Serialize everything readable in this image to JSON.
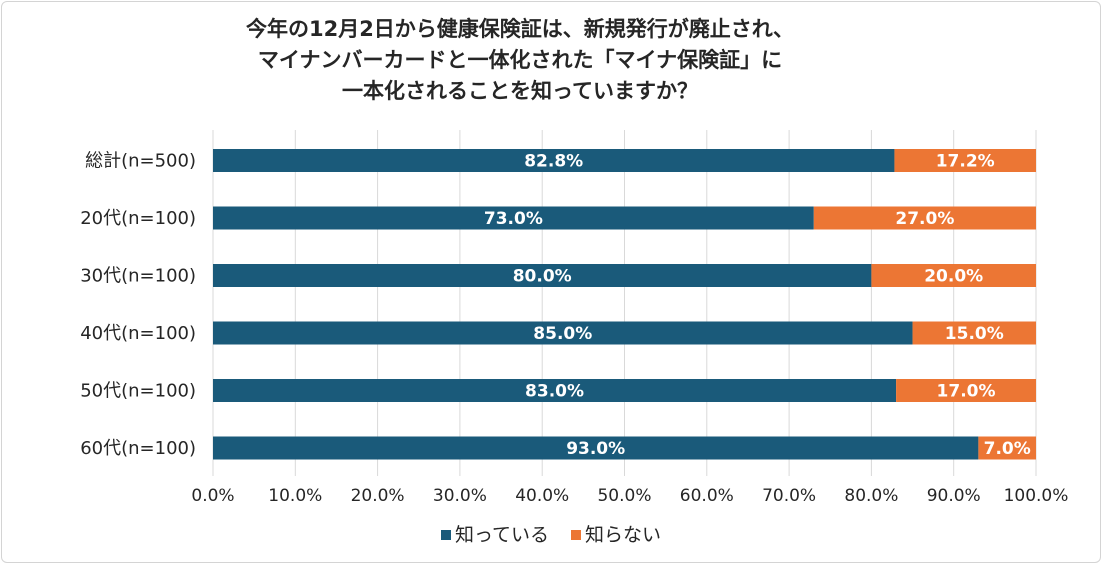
{
  "chart_data": {
    "type": "bar",
    "orientation": "horizontal",
    "stacked": true,
    "title_lines": [
      "今年の12月2日から健康保険証は、新規発行が廃止され、",
      "マイナンバーカードと一体化された「マイナ保険証」に",
      "一本化されることを知っていますか？"
    ],
    "categories": [
      "総計(n=500)",
      "20代(n=100)",
      "30代(n=100)",
      "40代(n=100)",
      "50代(n=100)",
      "60代(n=100)"
    ],
    "series": [
      {
        "name": "知っている",
        "color": "#1a5a7a",
        "values": [
          82.8,
          73.0,
          80.0,
          85.0,
          83.0,
          93.0
        ],
        "labels": [
          "82.8%",
          "73.0%",
          "80.0%",
          "85.0%",
          "83.0%",
          "93.0%"
        ]
      },
      {
        "name": "知らない",
        "color": "#ec7634",
        "values": [
          17.2,
          27.0,
          20.0,
          15.0,
          17.0,
          7.0
        ],
        "labels": [
          "17.2%",
          "27.0%",
          "20.0%",
          "15.0%",
          "17.0%",
          "7.0%"
        ]
      }
    ],
    "x_ticks": [
      "0.0%",
      "10.0%",
      "20.0%",
      "30.0%",
      "40.0%",
      "50.0%",
      "60.0%",
      "70.0%",
      "80.0%",
      "90.0%",
      "100.0%"
    ],
    "xlim": [
      0,
      100
    ],
    "grid": "vertical",
    "legend_position": "bottom"
  }
}
